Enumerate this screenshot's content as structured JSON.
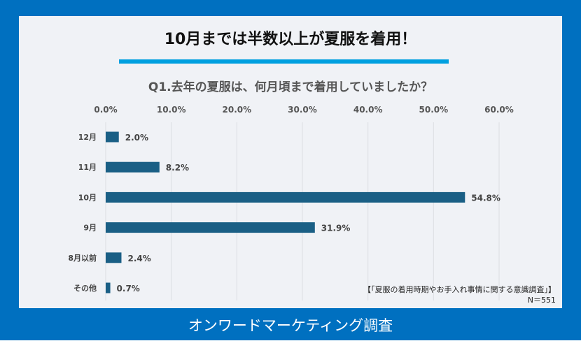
{
  "headline": "10月までは半数以上が夏服を着用！",
  "footer": "オンワードマーケティング調査",
  "source": "【「夏服の着用時期やお手入れ事情に関する意識調査」】",
  "sample": "N＝551",
  "colors": {
    "frame": "#0070c0",
    "bar": "#1a5f85",
    "underline": "#00a0e0"
  },
  "chart_data": {
    "type": "bar",
    "orientation": "horizontal",
    "title": "Q1.去年の夏服は、何月頃まで着用していましたか？",
    "categories": [
      "12月",
      "11月",
      "10月",
      "9月",
      "8月以前",
      "その他"
    ],
    "values": [
      2.0,
      8.2,
      54.8,
      31.9,
      2.4,
      0.7
    ],
    "value_labels": [
      "2.0%",
      "8.2%",
      "54.8%",
      "31.9%",
      "2.4%",
      "0.7%"
    ],
    "xlim": [
      0,
      60
    ],
    "xticks": [
      "0.0%",
      "10.0%",
      "20.0%",
      "30.0%",
      "40.0%",
      "50.0%",
      "60.0%"
    ],
    "xaxis_position": "top",
    "grid": true
  }
}
